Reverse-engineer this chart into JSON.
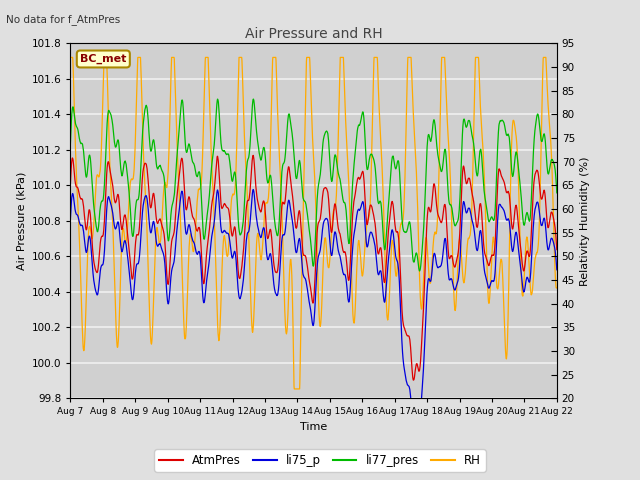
{
  "title": "Air Pressure and RH",
  "top_left_text": "No data for f_AtmPres",
  "box_label": "BC_met",
  "xlabel": "Time",
  "ylabel_left": "Air Pressure (kPa)",
  "ylabel_right": "Relativity Humidity (%)",
  "ylim_left": [
    99.8,
    101.8
  ],
  "ylim_right": [
    20,
    95
  ],
  "yticks_left": [
    99.8,
    100.0,
    100.2,
    100.4,
    100.6,
    100.8,
    101.0,
    101.2,
    101.4,
    101.6,
    101.8
  ],
  "yticks_right": [
    20,
    25,
    30,
    35,
    40,
    45,
    50,
    55,
    60,
    65,
    70,
    75,
    80,
    85,
    90,
    95
  ],
  "colors": {
    "AtmPres": "#dd0000",
    "li75_p": "#0000dd",
    "li77_pres": "#00bb00",
    "RH": "#ffaa00"
  },
  "legend_labels": [
    "AtmPres",
    "li75_p",
    "li77_pres",
    "RH"
  ],
  "background_color": "#e0e0e0",
  "plot_bg_color": "#d0d0d0",
  "grid_color": "#f0f0f0",
  "fig_width": 6.4,
  "fig_height": 4.8,
  "dpi": 100
}
